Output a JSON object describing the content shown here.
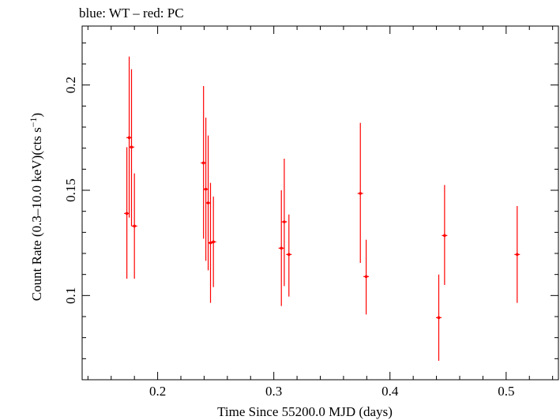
{
  "chart_data": {
    "type": "scatter",
    "title": "blue: WT – red: PC",
    "xlabel": "Time Since 55200.0 MJD (days)",
    "ylabel_main": "Count Rate (0.3–10.0 keV)(cts s",
    "ylabel_sup": "−1",
    "ylabel_close": ")",
    "xlim": [
      0.135,
      0.545
    ],
    "ylim": [
      0.06,
      0.228
    ],
    "xticks_major": [
      0.2,
      0.3,
      0.4,
      0.5
    ],
    "xtick_labels": [
      "0.2",
      "0.3",
      "0.4",
      "0.5"
    ],
    "yticks_major": [
      0.1,
      0.15,
      0.2
    ],
    "ytick_labels": [
      "0.1",
      "0.15",
      "0.2"
    ],
    "grid": false,
    "series": [
      {
        "color": "#ff0000",
        "points": [
          {
            "x": 0.1735,
            "y": 0.139,
            "yerr_low": 0.108,
            "yerr_high": 0.1705
          },
          {
            "x": 0.1755,
            "y": 0.175,
            "yerr_low": 0.137,
            "yerr_high": 0.2135
          },
          {
            "x": 0.1775,
            "y": 0.1705,
            "yerr_low": 0.133,
            "yerr_high": 0.2075
          },
          {
            "x": 0.18,
            "y": 0.133,
            "yerr_low": 0.108,
            "yerr_high": 0.158
          },
          {
            "x": 0.2395,
            "y": 0.163,
            "yerr_low": 0.127,
            "yerr_high": 0.1995
          },
          {
            "x": 0.2415,
            "y": 0.1505,
            "yerr_low": 0.1165,
            "yerr_high": 0.1845
          },
          {
            "x": 0.2435,
            "y": 0.144,
            "yerr_low": 0.112,
            "yerr_high": 0.176
          },
          {
            "x": 0.2455,
            "y": 0.125,
            "yerr_low": 0.0965,
            "yerr_high": 0.1535
          },
          {
            "x": 0.248,
            "y": 0.1255,
            "yerr_low": 0.104,
            "yerr_high": 0.147
          },
          {
            "x": 0.3065,
            "y": 0.1225,
            "yerr_low": 0.095,
            "yerr_high": 0.15
          },
          {
            "x": 0.309,
            "y": 0.135,
            "yerr_low": 0.1045,
            "yerr_high": 0.165
          },
          {
            "x": 0.313,
            "y": 0.1195,
            "yerr_low": 0.0995,
            "yerr_high": 0.1385
          },
          {
            "x": 0.3745,
            "y": 0.1485,
            "yerr_low": 0.1155,
            "yerr_high": 0.182
          },
          {
            "x": 0.3795,
            "y": 0.109,
            "yerr_low": 0.091,
            "yerr_high": 0.1265
          },
          {
            "x": 0.442,
            "y": 0.0895,
            "yerr_low": 0.069,
            "yerr_high": 0.11
          },
          {
            "x": 0.447,
            "y": 0.1285,
            "yerr_low": 0.105,
            "yerr_high": 0.1525
          },
          {
            "x": 0.5095,
            "y": 0.1195,
            "yerr_low": 0.0965,
            "yerr_high": 0.1425
          }
        ]
      }
    ]
  }
}
